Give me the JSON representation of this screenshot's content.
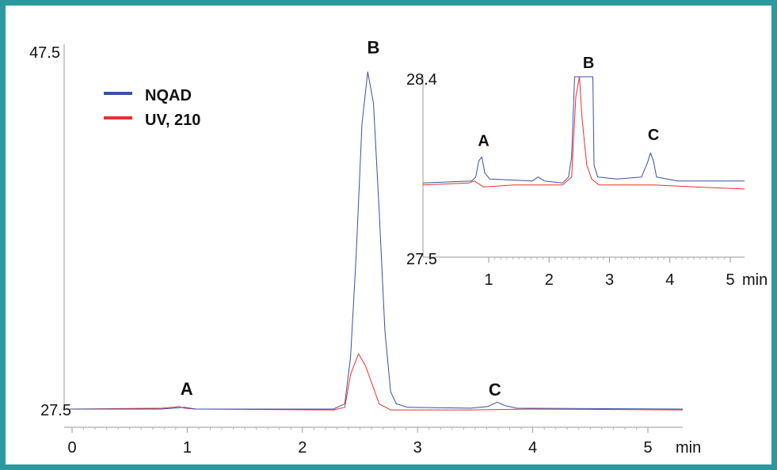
{
  "frame_color": "#2b9aa0",
  "chart_data": [
    {
      "type": "line",
      "title": "",
      "xlabel": "min",
      "ylabel": "",
      "x_ticks": [
        "0",
        "1",
        "2",
        "3",
        "4",
        "5"
      ],
      "y_ticks": [
        "27.5",
        "47.5"
      ],
      "xlim": [
        -0.05,
        5.35
      ],
      "ylim": [
        27.5,
        47.5
      ],
      "grid": false,
      "legend": {
        "position": "top-left",
        "entries": [
          "NQAD",
          "UV, 210"
        ]
      },
      "series": [
        {
          "name": "NQAD",
          "color": "#3a4fa8",
          "points": [
            [
              0,
              27.5
            ],
            [
              0.8,
              27.5
            ],
            [
              0.9,
              27.55
            ],
            [
              1.0,
              27.6
            ],
            [
              1.1,
              27.5
            ],
            [
              2.3,
              27.5
            ],
            [
              2.4,
              27.8
            ],
            [
              2.45,
              30.5
            ],
            [
              2.5,
              36.5
            ],
            [
              2.55,
              44.0
            ],
            [
              2.6,
              47.0
            ],
            [
              2.65,
              45.2
            ],
            [
              2.7,
              39.0
            ],
            [
              2.75,
              32.0
            ],
            [
              2.8,
              28.5
            ],
            [
              2.85,
              27.8
            ],
            [
              2.95,
              27.6
            ],
            [
              3.5,
              27.55
            ],
            [
              3.65,
              27.65
            ],
            [
              3.73,
              27.9
            ],
            [
              3.8,
              27.7
            ],
            [
              3.9,
              27.55
            ],
            [
              5.35,
              27.5
            ]
          ]
        },
        {
          "name": "UV, 210",
          "color": "#e8312f",
          "points": [
            [
              0,
              27.5
            ],
            [
              0.8,
              27.55
            ],
            [
              0.9,
              27.6
            ],
            [
              0.95,
              27.65
            ],
            [
              1.0,
              27.55
            ],
            [
              1.1,
              27.5
            ],
            [
              2.3,
              27.45
            ],
            [
              2.4,
              27.6
            ],
            [
              2.45,
              29.5
            ],
            [
              2.52,
              30.7
            ],
            [
              2.58,
              30.0
            ],
            [
              2.63,
              29.1
            ],
            [
              2.7,
              27.8
            ],
            [
              2.8,
              27.45
            ],
            [
              3.0,
              27.45
            ],
            [
              3.5,
              27.45
            ],
            [
              4.0,
              27.5
            ],
            [
              5.35,
              27.45
            ]
          ]
        }
      ],
      "annotations": [
        {
          "text": "A",
          "x": 1.02,
          "y": 28.05
        },
        {
          "text": "B",
          "x": 2.65,
          "y": 47.8
        },
        {
          "text": "C",
          "x": 3.71,
          "y": 28.0
        }
      ]
    },
    {
      "type": "line",
      "title": "",
      "xlabel": "min",
      "ylabel": "",
      "x_ticks": [
        "1",
        "2",
        "3",
        "4",
        "5"
      ],
      "y_ticks": [
        "27.5",
        "28.4"
      ],
      "xlim": [
        0.0,
        5.3
      ],
      "ylim": [
        27.5,
        28.4
      ],
      "grid": false,
      "legend": null,
      "series": [
        {
          "name": "NQAD",
          "color": "#3a4fa8",
          "points": [
            [
              0,
              27.87
            ],
            [
              0.8,
              27.88
            ],
            [
              0.87,
              27.9
            ],
            [
              0.92,
              27.98
            ],
            [
              0.97,
              28.0
            ],
            [
              1.02,
              27.92
            ],
            [
              1.1,
              27.89
            ],
            [
              1.8,
              27.88
            ],
            [
              1.9,
              27.9
            ],
            [
              2.0,
              27.88
            ],
            [
              2.3,
              27.87
            ],
            [
              2.4,
              27.9
            ],
            [
              2.45,
              28.0
            ],
            [
              2.5,
              28.4
            ],
            [
              2.8,
              28.4
            ],
            [
              2.82,
              27.96
            ],
            [
              2.88,
              27.9
            ],
            [
              3.2,
              27.89
            ],
            [
              3.6,
              27.9
            ],
            [
              3.7,
              27.97
            ],
            [
              3.75,
              28.02
            ],
            [
              3.8,
              27.98
            ],
            [
              3.85,
              27.9
            ],
            [
              4.2,
              27.88
            ],
            [
              5.3,
              27.88
            ]
          ]
        },
        {
          "name": "UV, 210",
          "color": "#e8312f",
          "points": [
            [
              0,
              27.86
            ],
            [
              0.75,
              27.87
            ],
            [
              0.85,
              27.88
            ],
            [
              0.9,
              27.87
            ],
            [
              1.0,
              27.85
            ],
            [
              1.5,
              27.86
            ],
            [
              2.3,
              27.86
            ],
            [
              2.45,
              27.9
            ],
            [
              2.52,
              28.3
            ],
            [
              2.58,
              28.4
            ],
            [
              2.62,
              28.2
            ],
            [
              2.7,
              27.96
            ],
            [
              2.78,
              27.89
            ],
            [
              2.9,
              27.86
            ],
            [
              3.4,
              27.86
            ],
            [
              3.8,
              27.86
            ],
            [
              4.5,
              27.85
            ],
            [
              5.3,
              27.84
            ]
          ]
        }
      ],
      "annotations": [
        {
          "text": "A",
          "x": 1.0,
          "y": 28.03
        },
        {
          "text": "B",
          "x": 2.73,
          "y": 28.42
        },
        {
          "text": "C",
          "x": 3.8,
          "y": 28.06
        }
      ]
    }
  ]
}
